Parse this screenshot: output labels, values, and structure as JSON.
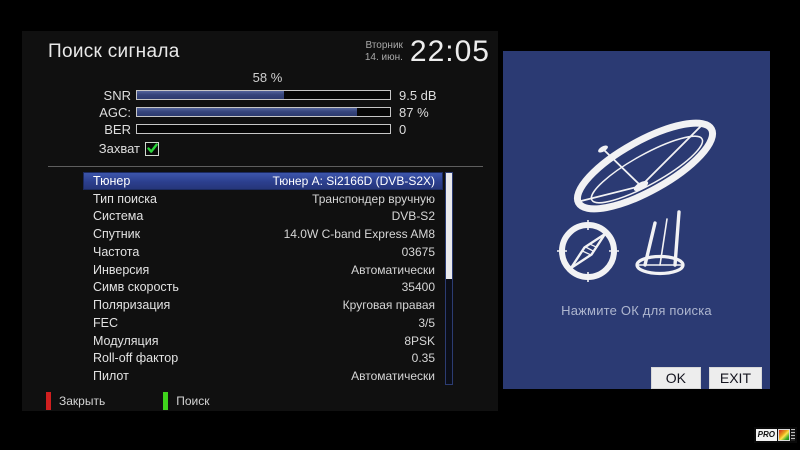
{
  "header": {
    "title": "Поиск сигнала",
    "day": "Вторник",
    "date": "14. июн.",
    "time": "22:05"
  },
  "signal": {
    "progress_label": "58 %",
    "progress_percent": 58,
    "meters": [
      {
        "label": "SNR",
        "percent": 58,
        "value": "9.5 dB"
      },
      {
        "label": "AGC:",
        "percent": 87,
        "value": "87 %"
      },
      {
        "label": "BER",
        "percent": 0,
        "value": "0"
      }
    ],
    "lock_label": "Захват",
    "lock_checked": true
  },
  "settings": {
    "rows": [
      {
        "label": "Тюнер",
        "value": "Тюнер A: Si2166D (DVB-S2X)",
        "selected": true
      },
      {
        "label": "Тип поиска",
        "value": "Транспондер вручную"
      },
      {
        "label": "Система",
        "value": "DVB-S2"
      },
      {
        "label": "Спутник",
        "value": "14.0W C-band Express AM8"
      },
      {
        "label": "Частота",
        "value": "03675"
      },
      {
        "label": "Инверсия",
        "value": "Автоматически"
      },
      {
        "label": "Симв скорость",
        "value": "35400"
      },
      {
        "label": "Поляризация",
        "value": "Круговая правая"
      },
      {
        "label": "FEC",
        "value": "3/5"
      },
      {
        "label": "Модуляция",
        "value": "8PSK"
      },
      {
        "label": "Roll-off фактор",
        "value": "0.35"
      },
      {
        "label": "Пилот",
        "value": "Автоматически"
      }
    ]
  },
  "footer_keys": [
    {
      "label": "Закрыть",
      "color": "#d01f1f"
    },
    {
      "label": "Поиск",
      "color": "#3fd41c"
    }
  ],
  "side_panel": {
    "hint": "Нажмите ОК для поиска",
    "buttons": [
      {
        "label": "OK"
      },
      {
        "label": "EXIT"
      }
    ],
    "background": "#2b3a73"
  },
  "watermark": {
    "text": "PRO"
  },
  "colors": {
    "panel_bg": "#101010",
    "bar_fill": "#36457c",
    "highlight_row": "#2c3f8e",
    "check_green": "#2bd43a",
    "side_panel_blue": "#2b3a73"
  }
}
